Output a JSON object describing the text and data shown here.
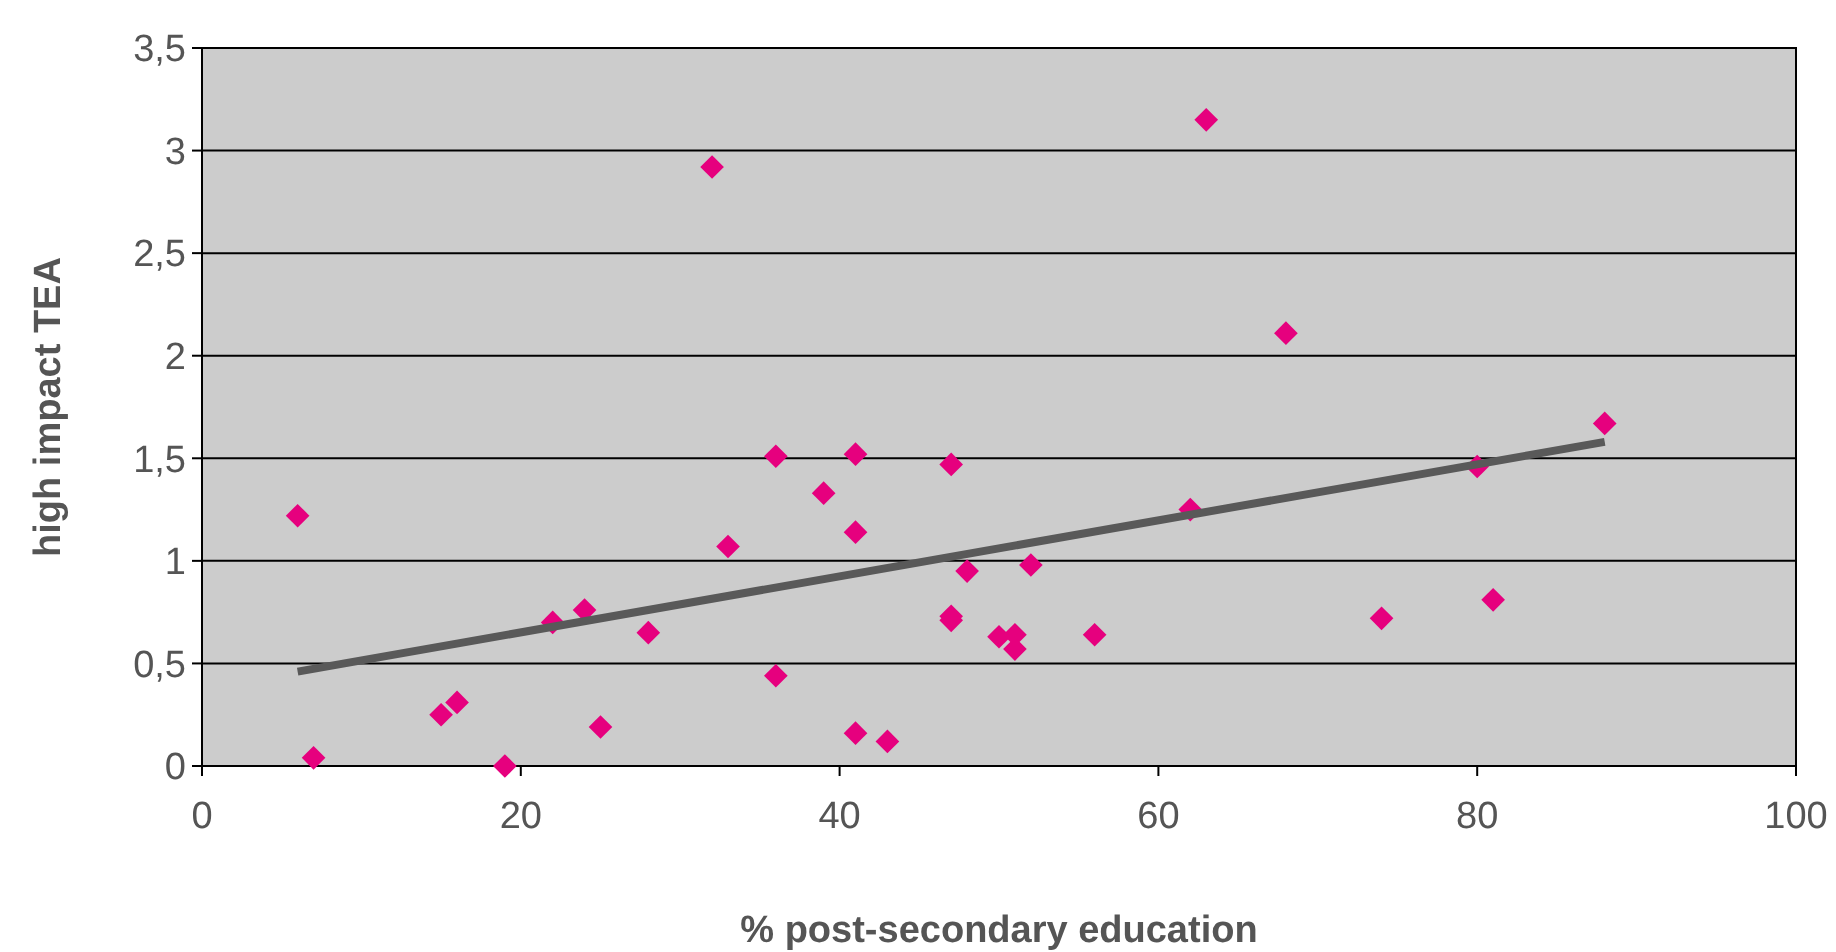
{
  "chart_data": {
    "type": "scatter",
    "xlabel": "% post-secondary education",
    "ylabel": "high impact TEA",
    "xlim": [
      0,
      100
    ],
    "xticks": [
      0,
      20,
      40,
      60,
      80,
      100
    ],
    "ylim": [
      0,
      3.5
    ],
    "yticks": [
      0,
      {
        "value": 0.5,
        "label": "0,5"
      },
      1,
      {
        "value": 1.5,
        "label": "1,5"
      },
      2,
      {
        "value": 2.5,
        "label": "2,5"
      },
      3,
      {
        "value": 3.5,
        "label": "3,5"
      }
    ],
    "grid": "y",
    "series": [
      {
        "marker": "diamond",
        "color": "#e6007e",
        "x": [
          6,
          7,
          15,
          16,
          19,
          22,
          24,
          25,
          28,
          32,
          33,
          36,
          36,
          39,
          41,
          41,
          41,
          43,
          47,
          47,
          47,
          48,
          50,
          51,
          51,
          52,
          56,
          62,
          63,
          68,
          74,
          80,
          81,
          88
        ],
        "values": [
          1.22,
          0.04,
          0.25,
          0.31,
          0,
          0.7,
          0.76,
          0.19,
          0.65,
          2.92,
          1.07,
          1.51,
          0.44,
          1.33,
          1.52,
          1.14,
          0.16,
          0.12,
          1.47,
          0.73,
          0.71,
          0.95,
          0.63,
          0.64,
          0.57,
          0.98,
          0.64,
          1.25,
          3.15,
          2.11,
          0.72,
          1.46,
          0.81,
          1.67
        ]
      },
      {
        "type": "line",
        "color": "#595959",
        "x": [
          6,
          88
        ],
        "values": [
          0.46,
          1.58
        ]
      }
    ]
  }
}
